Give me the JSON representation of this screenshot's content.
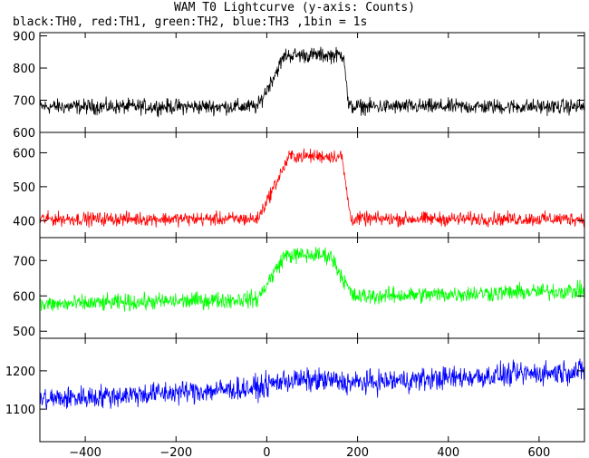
{
  "title": "WAM T0 Lightcurve (y-axis: Counts)",
  "subtitle": "black:TH0, red:TH1, green:TH2, blue:TH3 ,1bin = 1s",
  "chart_data": {
    "type": "line",
    "x_range": [
      -500,
      700
    ],
    "x_ticks": [
      -400,
      -200,
      0,
      200,
      400,
      600
    ],
    "bin_seconds": 1,
    "panels": [
      {
        "name": "TH0",
        "color": "#000000",
        "ylim": [
          600,
          910
        ],
        "y_ticks": [
          600,
          700,
          800,
          900
        ],
        "series_shape": {
          "baseline": 680,
          "noise_amplitude": 35,
          "burst": {
            "rise_start": -20,
            "peak_start": 40,
            "peak_end": 170,
            "fall_end": 180,
            "peak_level": 840
          }
        }
      },
      {
        "name": "TH1",
        "color": "#ff0000",
        "ylim": [
          350,
          660
        ],
        "y_ticks": [
          400,
          500,
          600
        ],
        "series_shape": {
          "baseline": 405,
          "noise_amplitude": 30,
          "burst": {
            "rise_start": -20,
            "peak_start": 50,
            "peak_end": 165,
            "fall_end": 185,
            "peak_level": 590
          }
        }
      },
      {
        "name": "TH2",
        "color": "#00ff00",
        "ylim": [
          480,
          765
        ],
        "y_ticks": [
          500,
          600,
          700
        ],
        "series_shape": {
          "baseline": 575,
          "noise_amplitude": 35,
          "trend_end": 615,
          "burst": {
            "rise_start": -20,
            "peak_start": 40,
            "peak_end": 140,
            "fall_end": 190,
            "peak_level": 715
          }
        }
      },
      {
        "name": "TH3",
        "color": "#0000ff",
        "ylim": [
          1015,
          1285
        ],
        "y_ticks": [
          1100,
          1200
        ],
        "series_shape": {
          "baseline": 1125,
          "noise_amplitude": 45,
          "trend_end": 1200,
          "burst": {
            "rise_start": -20,
            "peak_start": 40,
            "peak_end": 140,
            "fall_end": 190,
            "peak_level": 1175
          }
        }
      }
    ]
  }
}
